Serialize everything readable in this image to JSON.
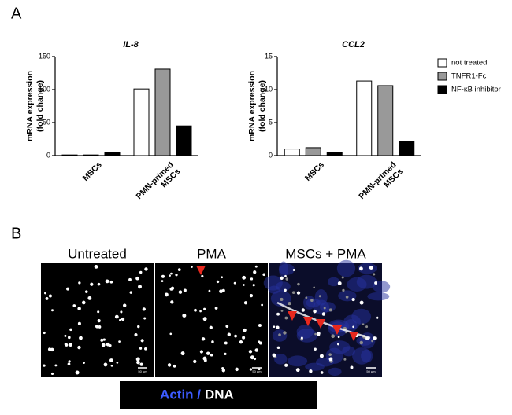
{
  "panels": {
    "a": "A",
    "b": "B"
  },
  "legend": [
    {
      "name": "not treated",
      "color": "#ffffff"
    },
    {
      "name": "TNFR1-Fc",
      "color": "#999999"
    },
    {
      "name": "NF-κB inhibitor",
      "color": "#000000"
    }
  ],
  "chart_data": [
    {
      "type": "bar",
      "title": "IL-8",
      "ylabel": [
        "mRNA expression",
        "(fold change)"
      ],
      "categories": [
        "MSCs",
        "PMN-primed\nMSCs"
      ],
      "series": [
        {
          "values": [
            1,
            101
          ]
        },
        {
          "values": [
            1,
            131
          ]
        },
        {
          "values": [
            5,
            45
          ]
        }
      ],
      "ylim": [
        0,
        150
      ],
      "yticks": [
        0,
        50,
        100,
        150
      ]
    },
    {
      "type": "bar",
      "title": "CCL2",
      "ylabel": [
        "mRNA expression",
        "(fold change)"
      ],
      "categories": [
        "MSCs",
        "PMN-primed\nMSCs"
      ],
      "series": [
        {
          "values": [
            1.0,
            11.3
          ]
        },
        {
          "values": [
            1.2,
            10.6
          ]
        },
        {
          "values": [
            0.5,
            2.1
          ]
        }
      ],
      "ylim": [
        0,
        15
      ],
      "yticks": [
        0,
        5,
        10,
        15
      ]
    }
  ],
  "images": {
    "labels": [
      "Untreated",
      "PMA",
      "MSCs + PMA"
    ],
    "scale_bar": "50 µm",
    "stain": {
      "actin": "Actin /",
      "dna": "DNA"
    }
  }
}
